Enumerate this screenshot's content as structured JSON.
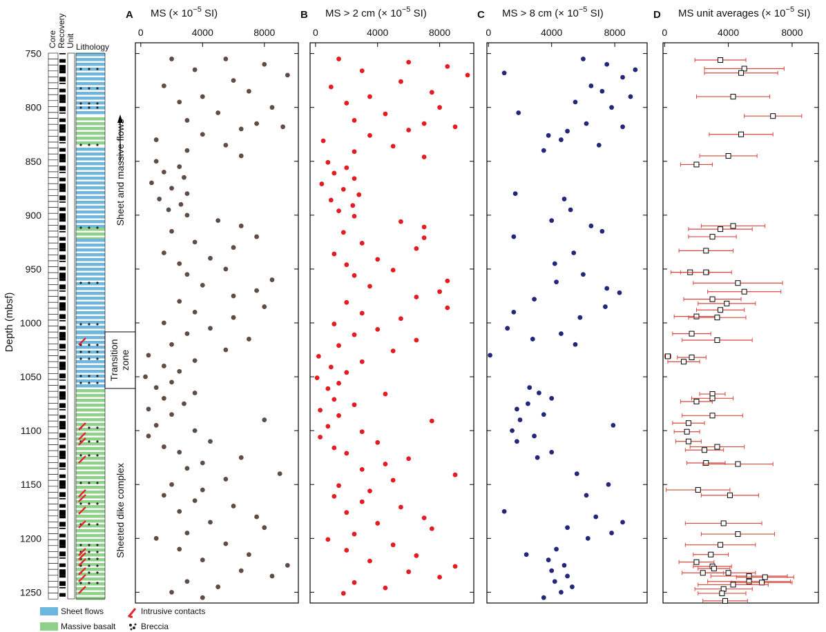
{
  "labels": {
    "core": "Core",
    "recovery": "Recovery",
    "unit": "Unit",
    "lithology": "Lithology",
    "zone_upper": "Sheet and massive flows",
    "zone_transition_1": "Transition",
    "zone_transition_2": "zone",
    "zone_lower": "Sheeted dike complex",
    "legend_sheet": "Sheet flows",
    "legend_massive": "Massive basalt",
    "legend_intrusive": "Intrusive contacts",
    "legend_breccia": "Breccia"
  },
  "chart_data": [
    {
      "type": "scatter",
      "letter": "A",
      "label_prefix": "MS (× 10",
      "label_exponent": "−5",
      "label_suffix": " SI)",
      "ylabel": "Depth (mbsf)",
      "color": "#5e4d45",
      "xlim": [
        -350,
        10200
      ],
      "xticks": [
        0,
        4000,
        8000
      ],
      "ylim": [
        740,
        1260
      ],
      "yticks": [
        750,
        800,
        850,
        900,
        950,
        1000,
        1050,
        1100,
        1150,
        1200,
        1250
      ],
      "y": [
        755,
        755,
        760,
        765,
        770,
        775,
        780,
        785,
        790,
        795,
        800,
        805,
        812,
        815,
        818,
        820,
        825,
        830,
        835,
        840,
        845,
        850,
        855,
        860,
        865,
        870,
        875,
        880,
        885,
        890,
        895,
        900,
        905,
        910,
        915,
        920,
        925,
        930,
        935,
        940,
        945,
        950,
        955,
        960,
        965,
        970,
        975,
        980,
        985,
        990,
        995,
        1000,
        1005,
        1010,
        1015,
        1020,
        1025,
        1030,
        1035,
        1040,
        1045,
        1050,
        1055,
        1060,
        1065,
        1070,
        1075,
        1080,
        1085,
        1090,
        1095,
        1100,
        1105,
        1110,
        1115,
        1120,
        1125,
        1130,
        1135,
        1140,
        1145,
        1150,
        1155,
        1160,
        1165,
        1170,
        1175,
        1180,
        1185,
        1190,
        1195,
        1200,
        1205,
        1210,
        1215,
        1220,
        1225,
        1230,
        1235,
        1240,
        1245,
        1250,
        1255
      ],
      "x": [
        2000,
        5500,
        8000,
        3500,
        9500,
        6000,
        1500,
        7000,
        4000,
        2500,
        8500,
        5000,
        3000,
        7500,
        9200,
        6500,
        4000,
        1000,
        5500,
        3000,
        6500,
        1000,
        2500,
        1500,
        2800,
        700,
        2000,
        3000,
        1200,
        2600,
        1800,
        3000,
        5000,
        6500,
        2000,
        7500,
        3500,
        6000,
        1500,
        4500,
        2500,
        5500,
        3000,
        8500,
        4000,
        7500,
        6000,
        2500,
        8000,
        3500,
        6000,
        1500,
        4500,
        3000,
        7000,
        2000,
        5500,
        500,
        3500,
        1500,
        2500,
        300,
        2000,
        1000,
        3500,
        1500,
        2800,
        500,
        2000,
        8000,
        1000,
        3500,
        500,
        4500,
        1500,
        2500,
        6500,
        4000,
        3000,
        9000,
        5500,
        2000,
        4000,
        1500,
        3500,
        6000,
        2500,
        7500,
        4500,
        8000,
        3000,
        1000,
        5500,
        2500,
        7000,
        4000,
        9500,
        6500,
        8500,
        3000,
        5000,
        2000,
        4000
      ]
    },
    {
      "type": "scatter",
      "letter": "B",
      "label_prefix": "MS > 2 cm (× 10",
      "label_exponent": "−5",
      "label_suffix": " SI)",
      "color": "#e31b23",
      "xlim": [
        -350,
        10200
      ],
      "xticks": [
        0,
        4000,
        8000
      ],
      "ylim": [
        740,
        1260
      ],
      "yticks": [
        750,
        800,
        850,
        900,
        950,
        1000,
        1050,
        1100,
        1150,
        1200,
        1250
      ],
      "y": [
        755,
        758,
        762,
        766,
        770,
        776,
        781,
        786,
        790,
        796,
        800,
        806,
        812,
        815,
        818,
        821,
        826,
        831,
        836,
        841,
        846,
        851,
        856,
        861,
        866,
        871,
        876,
        881,
        886,
        891,
        896,
        901,
        906,
        911,
        916,
        921,
        926,
        931,
        936,
        941,
        946,
        951,
        956,
        961,
        966,
        971,
        976,
        981,
        986,
        991,
        996,
        1001,
        1006,
        1011,
        1016,
        1021,
        1026,
        1031,
        1036,
        1041,
        1046,
        1051,
        1056,
        1061,
        1066,
        1071,
        1076,
        1081,
        1086,
        1091,
        1096,
        1101,
        1106,
        1111,
        1116,
        1121,
        1126,
        1131,
        1136,
        1141,
        1146,
        1151,
        1156,
        1161,
        1166,
        1171,
        1176,
        1181,
        1186,
        1191,
        1196,
        1201,
        1206,
        1211,
        1216,
        1221,
        1226,
        1231,
        1236,
        1241,
        1246,
        1251
      ],
      "x": [
        1500,
        6000,
        8500,
        3000,
        9800,
        5500,
        1000,
        7500,
        3500,
        2000,
        8000,
        4500,
        2500,
        7000,
        9000,
        6000,
        3500,
        500,
        5000,
        2500,
        7000,
        800,
        2000,
        1200,
        2500,
        400,
        1800,
        2800,
        1000,
        2400,
        1500,
        2500,
        5500,
        7000,
        1800,
        7000,
        3000,
        6500,
        1200,
        4000,
        2000,
        5000,
        2500,
        8500,
        3500,
        8000,
        6500,
        2000,
        8500,
        3000,
        5500,
        1200,
        4000,
        2500,
        6500,
        1500,
        5000,
        200,
        3000,
        1000,
        2000,
        100,
        1500,
        800,
        4500,
        1200,
        2500,
        300,
        1500,
        7500,
        800,
        3000,
        300,
        4000,
        1200,
        2000,
        6000,
        4500,
        3000,
        9000,
        5000,
        1500,
        3500,
        1200,
        3000,
        5500,
        2000,
        7000,
        4000,
        7500,
        2500,
        800,
        5000,
        2000,
        6500,
        3500,
        9000,
        6000,
        8000,
        2500,
        4500,
        1800
      ]
    },
    {
      "type": "scatter",
      "letter": "C",
      "label_prefix": "MS > 8 cm (× 10",
      "label_exponent": "−5",
      "label_suffix": " SI)",
      "color": "#24267a",
      "xlim": [
        -100,
        10050
      ],
      "xticks": [
        0,
        4000,
        8000
      ],
      "ylim": [
        740,
        1260
      ],
      "yticks": [
        750,
        800,
        850,
        900,
        950,
        1000,
        1050,
        1100,
        1150,
        1200,
        1250
      ],
      "y": [
        755,
        760,
        765,
        768,
        772,
        780,
        785,
        790,
        795,
        800,
        805,
        815,
        818,
        822,
        826,
        830,
        835,
        840,
        880,
        885,
        895,
        905,
        910,
        915,
        920,
        935,
        945,
        955,
        962,
        968,
        972,
        978,
        985,
        990,
        995,
        1005,
        1010,
        1015,
        1020,
        1030,
        1060,
        1065,
        1070,
        1075,
        1080,
        1085,
        1090,
        1095,
        1100,
        1105,
        1110,
        1120,
        1125,
        1140,
        1150,
        1160,
        1175,
        1180,
        1185,
        1190,
        1195,
        1200,
        1210,
        1215,
        1220,
        1225,
        1230,
        1235,
        1240,
        1245,
        1250,
        1255
      ],
      "x": [
        6000,
        7500,
        9300,
        1000,
        8500,
        6500,
        7200,
        9000,
        5500,
        7800,
        1900,
        6200,
        8500,
        5000,
        3800,
        4600,
        7000,
        3500,
        1700,
        4800,
        5200,
        4000,
        6500,
        7200,
        1600,
        5400,
        4200,
        6000,
        4300,
        7500,
        8300,
        2900,
        7400,
        1600,
        5800,
        1200,
        4600,
        2800,
        5500,
        100,
        2600,
        3200,
        4000,
        2500,
        1800,
        3500,
        2000,
        7900,
        1500,
        2900,
        1800,
        4000,
        3100,
        5600,
        7600,
        6200,
        1000,
        6800,
        8500,
        5000,
        7800,
        6300,
        4300,
        2400,
        3800,
        4800,
        4000,
        5000,
        4200,
        5300,
        4600,
        3500
      ]
    },
    {
      "type": "errorbar",
      "letter": "D",
      "label_prefix": "MS unit averages (× 10",
      "label_exponent": "−5",
      "label_suffix": " SI)",
      "color": "#d9463b",
      "xlim": [
        -100,
        9650
      ],
      "xticks": [
        0,
        4000,
        8000
      ],
      "ylim": [
        740,
        1260
      ],
      "yticks": [
        750,
        800,
        850,
        900,
        950,
        1000,
        1050,
        1100,
        1150,
        1200,
        1250
      ],
      "y": [
        756,
        764,
        768,
        790,
        808,
        825,
        845,
        853,
        910,
        913,
        920,
        933,
        953,
        953,
        963,
        971,
        978,
        982,
        988,
        994,
        995,
        1010,
        1016,
        1031,
        1032,
        1036,
        1066,
        1070,
        1073,
        1086,
        1093,
        1101,
        1110,
        1115,
        1118,
        1130,
        1131,
        1155,
        1160,
        1186,
        1196,
        1206,
        1215,
        1222,
        1226,
        1228,
        1232,
        1232,
        1235,
        1236,
        1240,
        1241,
        1243,
        1247,
        1251,
        1258
      ],
      "x": [
        3500,
        5000,
        4800,
        4300,
        6800,
        4800,
        4000,
        2000,
        4300,
        3500,
        3000,
        2600,
        1600,
        2600,
        4600,
        5000,
        3000,
        3900,
        3500,
        2000,
        3300,
        1700,
        3300,
        200,
        1700,
        1200,
        3000,
        3000,
        2000,
        3000,
        1500,
        1400,
        1500,
        3300,
        2500,
        2600,
        4600,
        2100,
        4100,
        3700,
        4600,
        3500,
        2900,
        2000,
        3000,
        3100,
        4000,
        2400,
        5300,
        6300,
        5300,
        6100,
        4300,
        3700,
        3600,
        3800
      ],
      "error": [
        1600,
        2500,
        2300,
        2300,
        1800,
        2000,
        1800,
        1000,
        2000,
        2000,
        1500,
        1700,
        1200,
        1600,
        2800,
        2300,
        1800,
        1800,
        1500,
        1400,
        1800,
        1200,
        2200,
        200,
        900,
        1000,
        800,
        1300,
        1000,
        1900,
        1000,
        800,
        800,
        1700,
        1200,
        1200,
        2200,
        2000,
        1800,
        2400,
        2300,
        2200,
        1100,
        1100,
        1200,
        1000,
        1700,
        1300,
        2400,
        1800,
        2600,
        1900,
        2200,
        1800,
        1500,
        1400
      ]
    }
  ]
}
